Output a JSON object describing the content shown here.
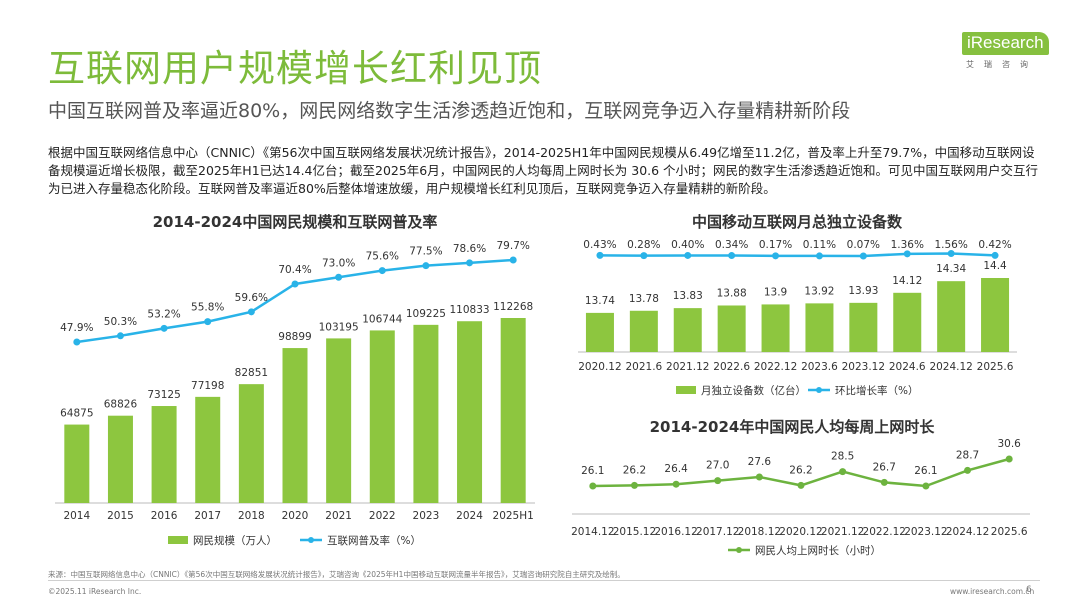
{
  "page": {
    "title": "互联网用户规模增长红利见顶",
    "subtitle": "中国互联网普及率逼近80%，网民网络数字生活渗透趋近饱和，互联网竞争迈入存量精耕新阶段",
    "body": "根据中国互联网络信息中心（CNNIC）《第56次中国互联网络发展状况统计报告》，2014-2025H1年中国网民规模从6.49亿增至11.2亿，普及率上升至79.7%，中国移动互联网设备规模逼近增长极限，截至2025年H1已达14.4亿台；截至2025年6月，中国网民的人均每周上网时长为 30.6 个小时；网民的数字生活渗透趋近饱和。可见中国互联网用户交互行为已进入存量稳态化阶段。互联网普及率逼近80%后整体增速放缓，用户规模增长红利见顶后，互联网竞争迈入存量精耕的新阶段。",
    "logo_text": "iResearch",
    "logo_sub": "艾瑞咨询",
    "source": "来源：中国互联网络信息中心（CNNIC）《第56次中国互联网络发展状况统计报告》，艾瑞咨询《2025年H1中国移动互联网流量半年报告》，艾瑞咨询研究院自主研究及绘制。",
    "copyright": "©2025.11 iResearch Inc.",
    "website": "www.iresearch.com.cn",
    "page_number": "6",
    "colors": {
      "green": "#8dc63f",
      "blue": "#29b3e8",
      "title_green": "#7dbb3a"
    }
  },
  "chart_data": [
    {
      "type": "bar",
      "title": "2014-2024中国网民规模和互联网普及率",
      "categories": [
        "2014",
        "2015",
        "2016",
        "2017",
        "2018",
        "2020",
        "2021",
        "2022",
        "2023",
        "2024",
        "2025H1"
      ],
      "series": [
        {
          "name": "网民规模（万人）",
          "type": "bar",
          "values": [
            64875,
            68826,
            73125,
            77198,
            82851,
            98899,
            103195,
            106744,
            109225,
            110833,
            112268
          ],
          "labels": [
            "64875",
            "68826",
            "73125",
            "77198",
            "82851",
            "98899",
            "103195",
            "106744",
            "109225",
            "110833",
            "112268"
          ]
        },
        {
          "name": "互联网普及率（%）",
          "type": "line",
          "values": [
            47.9,
            50.3,
            53.2,
            55.8,
            59.6,
            70.4,
            73.0,
            75.6,
            77.5,
            78.6,
            79.7
          ],
          "labels": [
            "47.9%",
            "50.3%",
            "53.2%",
            "55.8%",
            "59.6%",
            "70.4%",
            "73.0%",
            "75.6%",
            "77.5%",
            "78.6%",
            "79.7%"
          ]
        }
      ]
    },
    {
      "type": "bar",
      "title": "中国移动互联网月总独立设备数",
      "categories": [
        "2020.12",
        "2021.6",
        "2021.12",
        "2022.6",
        "2022.12",
        "2023.6",
        "2023.12",
        "2024.6",
        "2024.12",
        "2025.6"
      ],
      "series": [
        {
          "name": "月独立设备数（亿台）",
          "type": "bar",
          "values": [
            13.74,
            13.78,
            13.83,
            13.88,
            13.9,
            13.92,
            13.93,
            14.12,
            14.34,
            14.4
          ],
          "labels": [
            "13.74",
            "13.78",
            "13.83",
            "13.88",
            "13.9",
            "13.92",
            "13.93",
            "14.12",
            "14.34",
            "14.4"
          ]
        },
        {
          "name": "环比增长率（%）",
          "type": "line",
          "values": [
            0.43,
            0.28,
            0.4,
            0.34,
            0.17,
            0.11,
            0.07,
            1.36,
            1.56,
            0.42
          ],
          "labels": [
            "0.43%",
            "0.28%",
            "0.40%",
            "0.34%",
            "0.17%",
            "0.11%",
            "0.07%",
            "1.36%",
            "1.56%",
            "0.42%"
          ]
        }
      ]
    },
    {
      "type": "line",
      "title": "2014-2024年中国网民人均每周上网时长",
      "categories": [
        "2014.12",
        "2015.12",
        "2016.12",
        "2017.12",
        "2018.12",
        "2020.12",
        "2021.12",
        "2022.12",
        "2023.12",
        "2024.12",
        "2025.6"
      ],
      "series": [
        {
          "name": "网民人均上网时长（小时）",
          "type": "line",
          "values": [
            26.1,
            26.2,
            26.4,
            27.0,
            27.6,
            26.2,
            28.5,
            26.7,
            26.1,
            28.7,
            30.6
          ],
          "labels": [
            "26.1",
            "26.2",
            "26.4",
            "27.0",
            "27.6",
            "26.2",
            "28.5",
            "26.7",
            "26.1",
            "28.7",
            "30.6"
          ]
        }
      ]
    }
  ]
}
